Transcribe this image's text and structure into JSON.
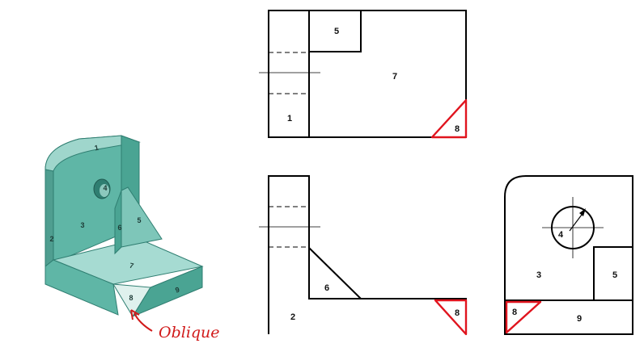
{
  "annotation": {
    "text": "Oblique",
    "color": "#d11a1a"
  },
  "colors": {
    "highlight": "#e0141e",
    "part_face": "#5fb6a6",
    "part_top": "#9fd6cc"
  },
  "isometric": {
    "labels": {
      "top": "1",
      "left": "2",
      "front": "3",
      "hole": "4",
      "rib_front": "5",
      "rib_side": "6",
      "base_top": "7",
      "oblique": "8",
      "base_side": "9"
    }
  },
  "views": {
    "top": {
      "labels": {
        "rib": "5",
        "base": "7",
        "upright": "1",
        "oblique": "8"
      }
    },
    "front": {
      "labels": {
        "rib": "6",
        "upright": "2",
        "oblique": "8"
      }
    },
    "side": {
      "labels": {
        "hole": "4",
        "face": "3",
        "rib": "5",
        "oblique": "8",
        "base": "9"
      }
    }
  }
}
